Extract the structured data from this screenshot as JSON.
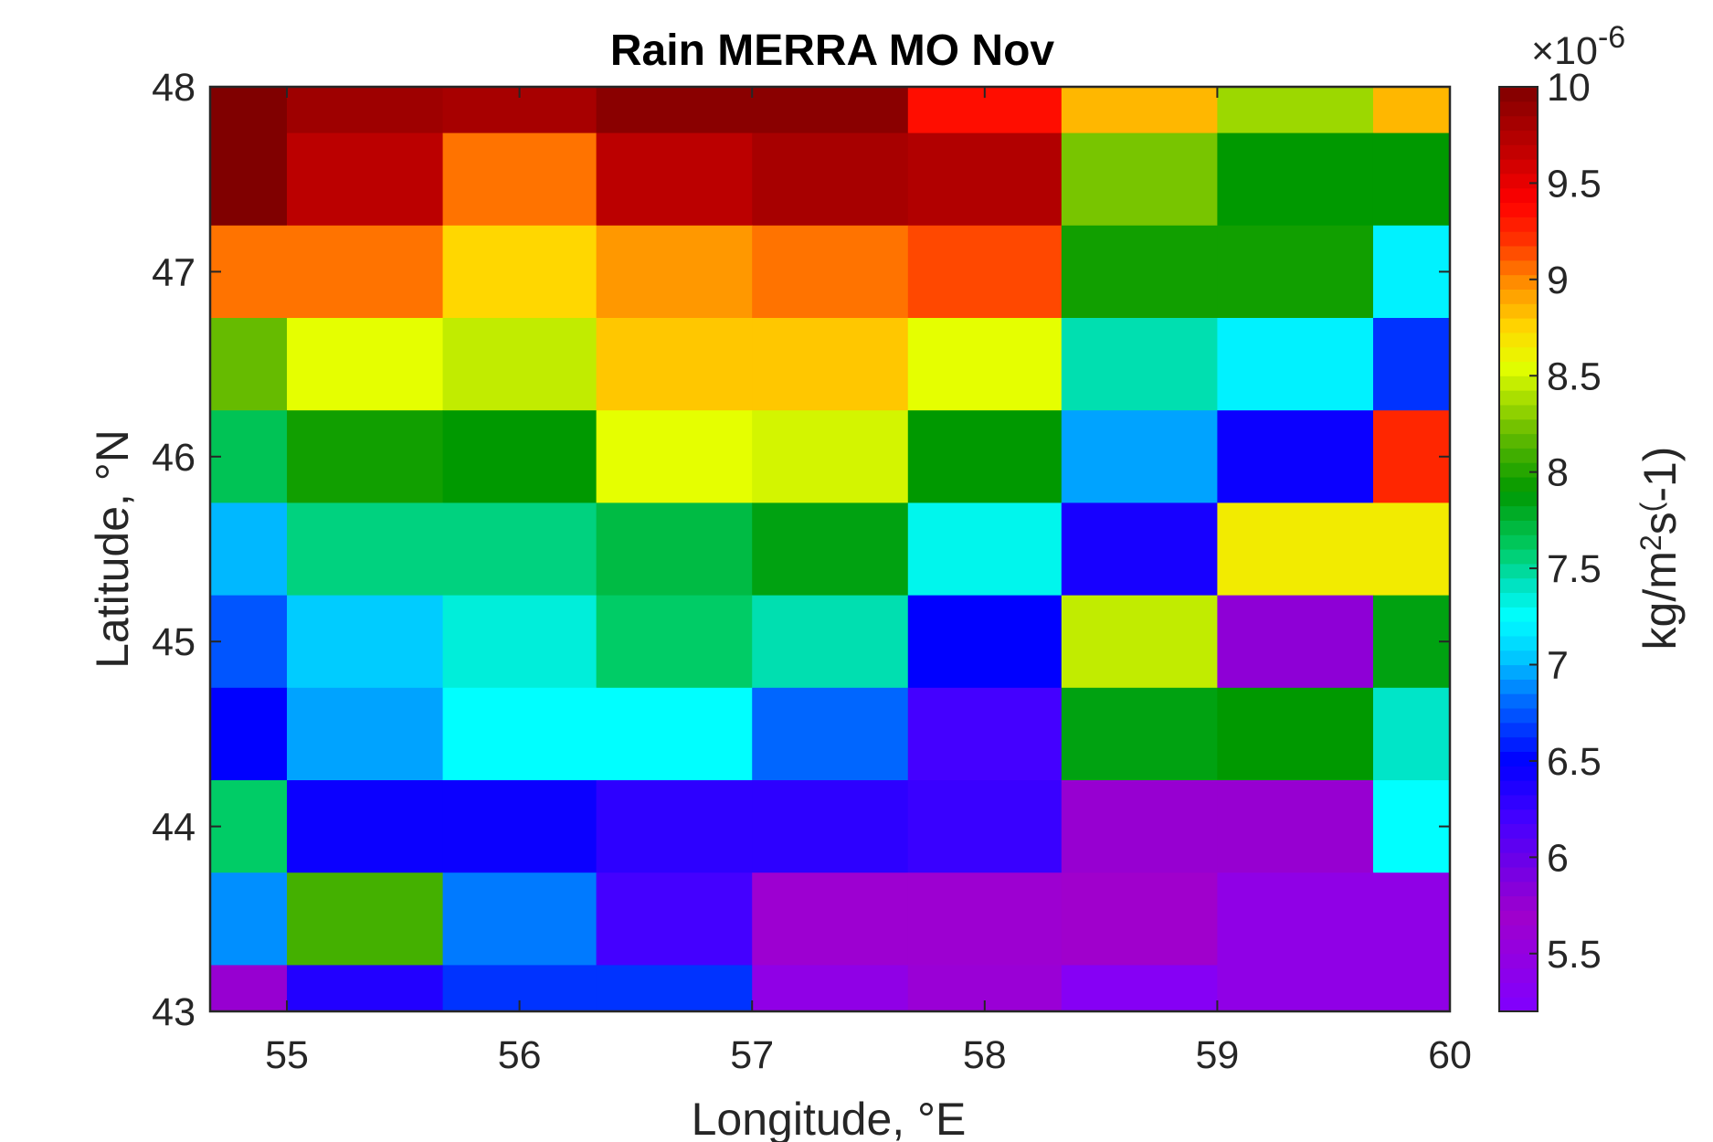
{
  "chart_data": {
    "type": "heatmap",
    "title": "Rain MERRA MO Nov",
    "xlabel": "Longitude, °E",
    "ylabel": "Latitude, °N",
    "colorbar_label_parts": [
      "kg/m",
      "2",
      "s",
      "(",
      "-1)"
    ],
    "colorbar_exponent": "×10",
    "colorbar_exponent_power": "-6",
    "x_edges": [
      54.67,
      55.0,
      55.67,
      56.33,
      57.0,
      57.67,
      58.33,
      59.0,
      59.67,
      60.0
    ],
    "y_edges": [
      43.0,
      43.25,
      43.75,
      44.25,
      44.75,
      45.25,
      45.75,
      46.25,
      46.75,
      47.25,
      47.75,
      48.0
    ],
    "xlim": [
      54.67,
      60.0
    ],
    "ylim": [
      43.0,
      48.0
    ],
    "x_ticks": [
      "55",
      "56",
      "57",
      "58",
      "59",
      "60"
    ],
    "y_ticks": [
      "43",
      "44",
      "45",
      "46",
      "47",
      "48"
    ],
    "clim": [
      5.2,
      10.0
    ],
    "colorbar_ticks": [
      "5.5",
      "6",
      "6.5",
      "7",
      "7.5",
      "8",
      "8.5",
      "9",
      "9.5",
      "10"
    ],
    "colormap": [
      "#8000ff",
      "#a000cc",
      "#4400ff",
      "#0000ff",
      "#0066ff",
      "#00ccff",
      "#00ffff",
      "#00e5c8",
      "#00cc66",
      "#009900",
      "#66bb00",
      "#e5ff00",
      "#ffd700",
      "#ff8800",
      "#ff3300",
      "#ff0000",
      "#bb0000",
      "#800000"
    ],
    "colormap_stops": [
      5.2,
      5.7,
      6.2,
      6.5,
      6.8,
      7.05,
      7.25,
      7.4,
      7.6,
      7.9,
      8.2,
      8.55,
      8.75,
      9.0,
      9.2,
      9.4,
      9.7,
      10.0
    ],
    "values_row_order": "from top (47.75-48) to bottom (43-43.25), columns from west to east",
    "values": [
      [
        10.0,
        9.85,
        9.8,
        9.95,
        9.95,
        9.35,
        8.85,
        8.35,
        8.85
      ],
      [
        10.0,
        9.7,
        9.05,
        9.7,
        9.8,
        9.75,
        8.25,
        7.9,
        7.9
      ],
      [
        9.05,
        9.05,
        8.75,
        8.95,
        9.05,
        9.15,
        7.95,
        7.95,
        7.2
      ],
      [
        8.2,
        8.55,
        8.45,
        8.8,
        8.8,
        8.55,
        7.45,
        7.2,
        6.65
      ],
      [
        7.65,
        7.95,
        7.9,
        8.55,
        8.5,
        7.9,
        6.95,
        6.45,
        9.25
      ],
      [
        7.0,
        7.55,
        7.55,
        7.7,
        7.85,
        7.3,
        6.4,
        8.65,
        8.65
      ],
      [
        6.75,
        7.05,
        7.35,
        7.6,
        7.45,
        6.5,
        8.45,
        5.8,
        7.85
      ],
      [
        6.5,
        6.95,
        7.25,
        7.25,
        6.8,
        6.2,
        7.85,
        7.9,
        7.4
      ],
      [
        7.6,
        6.45,
        6.45,
        6.3,
        6.3,
        6.25,
        5.75,
        5.75,
        7.25
      ],
      [
        6.9,
        8.1,
        6.85,
        6.2,
        5.65,
        5.65,
        5.7,
        5.45,
        5.45
      ],
      [
        5.75,
        6.35,
        6.65,
        6.65,
        5.45,
        5.6,
        5.3,
        5.45,
        5.45
      ]
    ]
  }
}
